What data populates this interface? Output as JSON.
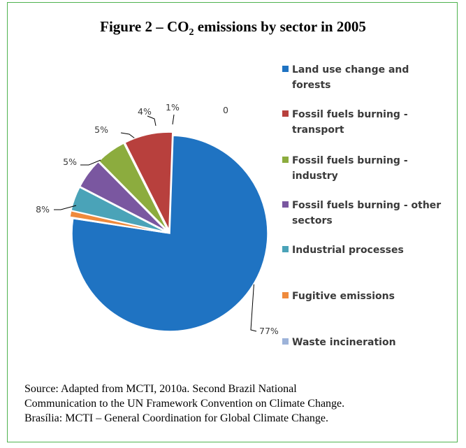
{
  "figure": {
    "title_prefix": "Figure 2 – CO",
    "title_subscript": "2",
    "title_suffix": " emissions by sector in 2005",
    "source_lines": [
      "Source: Adapted from MCTI, 2010a.  Second Brazil National",
      "Communication to the UN Framework Convention on Climate Change.",
      "Brasília: MCTI – General Coordination for Global Climate Change."
    ]
  },
  "chart_data": {
    "type": "pie",
    "title": "Figure 2 – CO2 emissions by sector in 2005",
    "legend_position": "right",
    "unit": "%",
    "slices": [
      {
        "name": "Land use change and forests",
        "legend_lines": [
          "Land use change and",
          "forests"
        ],
        "value": 77,
        "label": "77%",
        "color": "#1f73c2"
      },
      {
        "name": "Waste incineration",
        "legend_lines": [
          "Waste incineration"
        ],
        "value": 0,
        "label": "0",
        "color": "#9db3d9"
      },
      {
        "name": "Fugitive emissions",
        "legend_lines": [
          "Fugitive emissions"
        ],
        "value": 1,
        "label": "1%",
        "color": "#ef8a3c"
      },
      {
        "name": "Industrial processes",
        "legend_lines": [
          "Industrial processes"
        ],
        "value": 4,
        "label": "4%",
        "color": "#4aa3b8"
      },
      {
        "name": "Fossil fuels burning - other sectors",
        "legend_lines": [
          "Fossil fuels burning  - other",
          "sectors"
        ],
        "value": 5,
        "label": "5%",
        "color": "#7a57a0"
      },
      {
        "name": "Fossil fuels burning - industry",
        "legend_lines": [
          "Fossil fuels burning  -",
          "industry"
        ],
        "value": 5,
        "label": "5%",
        "color": "#8cac3e"
      },
      {
        "name": "Fossil fuels burning - transport",
        "legend_lines": [
          "Fossil fuels burning  -",
          "transport"
        ],
        "value": 8,
        "label": "8%",
        "color": "#b8403d"
      }
    ],
    "legend_order": [
      "Land use change and forests",
      "Fossil fuels burning - transport",
      "Fossil fuels burning - industry",
      "Fossil fuels burning - other sectors",
      "Industrial processes",
      "Fugitive emissions",
      "Waste incineration"
    ]
  }
}
